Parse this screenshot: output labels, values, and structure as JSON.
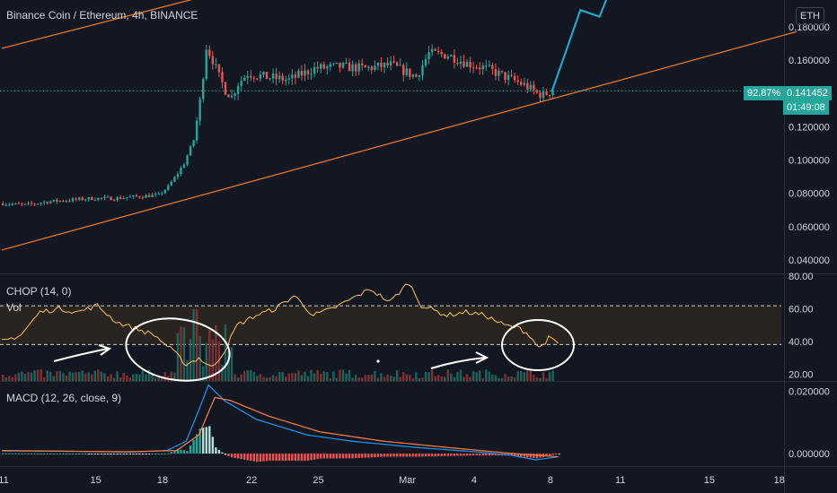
{
  "header": {
    "title": "Binance Coin / Ethereum, 4h, BINANCE",
    "currency_button": "ETH"
  },
  "current": {
    "percent": "92.87%",
    "price": "0.141452",
    "countdown": "01:49:08"
  },
  "colors": {
    "up": "#26a69a",
    "down": "#ef5350",
    "channel": "#f57c23",
    "chop": "#f7c45d",
    "macd": "#2196f3",
    "signal": "#ff7f3f",
    "projection": "#22a7c8",
    "annotation": "#ffffff"
  },
  "chart_data": [
    {
      "type": "candlestick",
      "title": "Binance Coin / Ethereum, 4h, BINANCE",
      "x_ticks": [
        "11",
        "15",
        "18",
        "22",
        "25",
        "Mar",
        "4",
        "8",
        "11",
        "15",
        "18"
      ],
      "y_ticks": [
        "0.180000",
        "0.160000",
        "0.140000",
        "0.120000",
        "0.100000",
        "0.080000",
        "0.060000",
        "0.040000"
      ],
      "ylim": [
        0.032,
        0.196
      ],
      "key_closes": [
        [
          0,
          0.074
        ],
        [
          7,
          0.073
        ],
        [
          14,
          0.075
        ],
        [
          21,
          0.076
        ],
        [
          28,
          0.077
        ],
        [
          35,
          0.077
        ],
        [
          42,
          0.078
        ],
        [
          49,
          0.079
        ],
        [
          52,
          0.084
        ],
        [
          55,
          0.092
        ],
        [
          57,
          0.098
        ],
        [
          60,
          0.112
        ],
        [
          62,
          0.135
        ],
        [
          64,
          0.168
        ],
        [
          66,
          0.16
        ],
        [
          68,
          0.15
        ],
        [
          70,
          0.142
        ],
        [
          72,
          0.138
        ],
        [
          74,
          0.146
        ],
        [
          77,
          0.152
        ],
        [
          82,
          0.15
        ],
        [
          90,
          0.148
        ],
        [
          98,
          0.155
        ],
        [
          106,
          0.156
        ],
        [
          114,
          0.155
        ],
        [
          122,
          0.157
        ],
        [
          130,
          0.15
        ],
        [
          134,
          0.164
        ],
        [
          140,
          0.163
        ],
        [
          146,
          0.158
        ],
        [
          152,
          0.155
        ],
        [
          158,
          0.15
        ],
        [
          164,
          0.145
        ],
        [
          168,
          0.14
        ],
        [
          170,
          0.139
        ],
        [
          173,
          0.142
        ]
      ],
      "channel_lines": [
        {
          "from": [
            0,
            0.167
          ],
          "to": [
            100,
            0.216
          ]
        },
        {
          "from": [
            0,
            0.046
          ],
          "to": [
            250,
            0.177
          ]
        }
      ],
      "projection": [
        [
          173,
          0.141
        ],
        [
          182,
          0.19
        ],
        [
          188,
          0.186
        ],
        [
          192,
          0.205
        ]
      ]
    },
    {
      "type": "line",
      "title": "CHOP (14, 0)",
      "secondary": "Vol",
      "y_ticks": [
        "80.00",
        "60.00",
        "40.00",
        "20.00"
      ],
      "ylim": [
        16,
        81
      ],
      "bands": [
        61.8,
        38.2
      ],
      "key_values": [
        [
          0,
          40
        ],
        [
          6,
          44
        ],
        [
          12,
          58
        ],
        [
          18,
          60
        ],
        [
          24,
          58
        ],
        [
          30,
          62
        ],
        [
          36,
          52
        ],
        [
          42,
          48
        ],
        [
          48,
          44
        ],
        [
          54,
          34
        ],
        [
          58,
          26
        ],
        [
          62,
          30
        ],
        [
          66,
          24
        ],
        [
          70,
          34
        ],
        [
          74,
          50
        ],
        [
          80,
          56
        ],
        [
          86,
          60
        ],
        [
          92,
          68
        ],
        [
          98,
          56
        ],
        [
          104,
          60
        ],
        [
          110,
          66
        ],
        [
          116,
          72
        ],
        [
          122,
          64
        ],
        [
          128,
          76
        ],
        [
          132,
          62
        ],
        [
          140,
          56
        ],
        [
          146,
          58
        ],
        [
          152,
          56
        ],
        [
          158,
          50
        ],
        [
          163,
          48
        ],
        [
          166,
          44
        ],
        [
          169,
          36
        ],
        [
          172,
          42
        ],
        [
          175,
          39
        ]
      ]
    },
    {
      "type": "line",
      "title": "MACD (12, 26, close, 9)",
      "y_ticks": [
        "0.020000",
        "0.000000"
      ],
      "ylim": [
        -0.004,
        0.023
      ],
      "key_macd": [
        [
          0,
          0.001
        ],
        [
          20,
          0.0008
        ],
        [
          40,
          0.0005
        ],
        [
          52,
          0.001
        ],
        [
          58,
          0.004
        ],
        [
          62,
          0.014
        ],
        [
          65,
          0.022
        ],
        [
          70,
          0.017
        ],
        [
          80,
          0.011
        ],
        [
          96,
          0.006
        ],
        [
          110,
          0.004
        ],
        [
          130,
          0.002
        ],
        [
          150,
          0.0005
        ],
        [
          160,
          -0.0005
        ],
        [
          168,
          -0.002
        ],
        [
          175,
          -0.001
        ]
      ],
      "key_signal": [
        [
          0,
          0.0009
        ],
        [
          40,
          0.0006
        ],
        [
          55,
          0.001
        ],
        [
          62,
          0.006
        ],
        [
          67,
          0.018
        ],
        [
          72,
          0.017
        ],
        [
          84,
          0.012
        ],
        [
          100,
          0.007
        ],
        [
          120,
          0.004
        ],
        [
          140,
          0.002
        ],
        [
          160,
          0.0001
        ],
        [
          175,
          -0.001
        ]
      ]
    }
  ]
}
